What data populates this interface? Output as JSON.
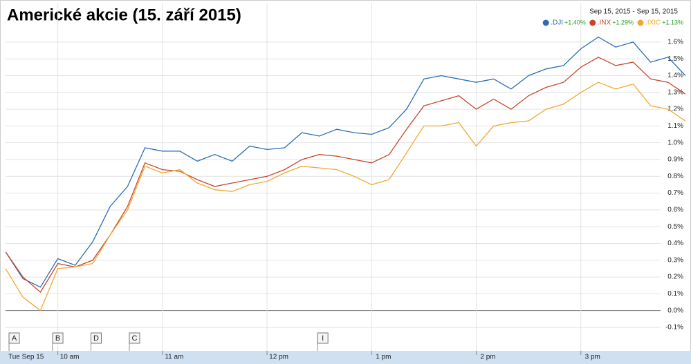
{
  "chart_data": {
    "type": "line",
    "title": "Americké akcie (15. září 2015)",
    "date_range": "Sep 15, 2015 - Sep 15, 2015",
    "date_label": "Tue Sep 15",
    "x": [
      570,
      580,
      590,
      600,
      610,
      620,
      630,
      640,
      650,
      660,
      670,
      680,
      690,
      700,
      710,
      720,
      730,
      740,
      750,
      760,
      770,
      780,
      790,
      800,
      810,
      820,
      830,
      840,
      850,
      860,
      870,
      880,
      890,
      900,
      910,
      920,
      930,
      940,
      950,
      960
    ],
    "xlim": [
      570,
      960
    ],
    "xticks": [
      {
        "value": 600,
        "label": "10 am"
      },
      {
        "value": 660,
        "label": "11 am"
      },
      {
        "value": 720,
        "label": "12 pm"
      },
      {
        "value": 780,
        "label": "1 pm"
      },
      {
        "value": 840,
        "label": "2 pm"
      },
      {
        "value": 900,
        "label": "3 pm"
      }
    ],
    "ylim": [
      -0.24,
      1.83
    ],
    "yticks": [
      {
        "value": -0.1,
        "label": "-0.1%"
      },
      {
        "value": 0,
        "label": "0.0%"
      },
      {
        "value": 0.1,
        "label": "0.1%"
      },
      {
        "value": 0.2,
        "label": "0.2%"
      },
      {
        "value": 0.3,
        "label": "0.3%"
      },
      {
        "value": 0.4,
        "label": "0.4%"
      },
      {
        "value": 0.5,
        "label": "0.5%"
      },
      {
        "value": 0.6,
        "label": "0.6%"
      },
      {
        "value": 0.7,
        "label": "0.7%"
      },
      {
        "value": 0.8,
        "label": "0.8%"
      },
      {
        "value": 0.9,
        "label": "0.9%"
      },
      {
        "value": 1.0,
        "label": "1.0%"
      },
      {
        "value": 1.1,
        "label": "1.1%"
      },
      {
        "value": 1.2,
        "label": "1.2%"
      },
      {
        "value": 1.3,
        "label": "1.3%"
      },
      {
        "value": 1.4,
        "label": "1.4%"
      },
      {
        "value": 1.5,
        "label": "1.5%"
      },
      {
        "value": 1.6,
        "label": "1.6%"
      }
    ],
    "grid": true,
    "series": [
      {
        "name": ".DJI",
        "change": "+1.40%",
        "color": "#2a6db5",
        "values": [
          0.35,
          0.19,
          0.14,
          0.31,
          0.27,
          0.41,
          0.62,
          0.74,
          0.97,
          0.95,
          0.95,
          0.89,
          0.93,
          0.89,
          0.98,
          0.96,
          0.97,
          1.06,
          1.04,
          1.08,
          1.06,
          1.05,
          1.09,
          1.2,
          1.38,
          1.4,
          1.38,
          1.36,
          1.38,
          1.32,
          1.4,
          1.44,
          1.46,
          1.56,
          1.63,
          1.57,
          1.6,
          1.48,
          1.51,
          1.4
        ]
      },
      {
        "name": ".INX",
        "change": "+1.29%",
        "color": "#c9452b",
        "values": [
          0.35,
          0.2,
          0.11,
          0.28,
          0.26,
          0.3,
          0.45,
          0.62,
          0.88,
          0.84,
          0.83,
          0.78,
          0.74,
          0.76,
          0.78,
          0.8,
          0.84,
          0.9,
          0.93,
          0.92,
          0.9,
          0.88,
          0.93,
          1.08,
          1.22,
          1.25,
          1.28,
          1.2,
          1.26,
          1.2,
          1.28,
          1.33,
          1.36,
          1.45,
          1.51,
          1.46,
          1.48,
          1.38,
          1.36,
          1.29
        ]
      },
      {
        "name": ".IXIC",
        "change": "+1.13%",
        "color": "#f0a830",
        "values": [
          0.25,
          0.08,
          0.0,
          0.25,
          0.26,
          0.28,
          0.45,
          0.6,
          0.86,
          0.82,
          0.84,
          0.76,
          0.72,
          0.71,
          0.75,
          0.77,
          0.82,
          0.86,
          0.85,
          0.84,
          0.8,
          0.75,
          0.78,
          0.94,
          1.1,
          1.1,
          1.12,
          0.98,
          1.1,
          1.12,
          1.13,
          1.2,
          1.23,
          1.3,
          1.36,
          1.32,
          1.35,
          1.22,
          1.2,
          1.13
        ]
      }
    ],
    "annotations": [
      {
        "label": "A",
        "x": 572
      },
      {
        "label": "B",
        "x": 597
      },
      {
        "label": "D",
        "x": 619
      },
      {
        "label": "C",
        "x": 641
      },
      {
        "label": "I",
        "x": 749
      }
    ]
  }
}
